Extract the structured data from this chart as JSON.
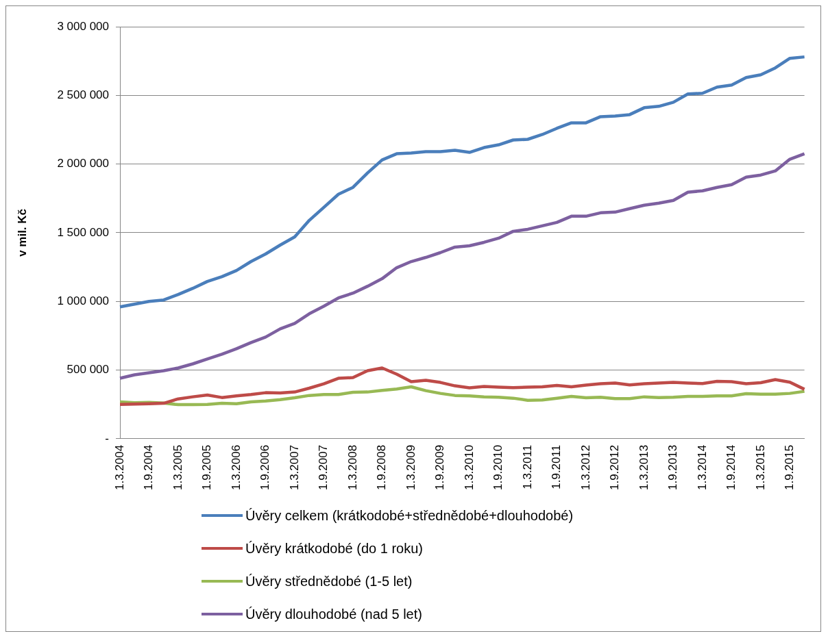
{
  "chart_data": {
    "type": "line",
    "ylabel": "v mil. Kč",
    "categories": [
      "1.3.2004",
      null,
      "1.9.2004",
      null,
      "1.3.2005",
      null,
      "1.9.2005",
      null,
      "1.3.2006",
      null,
      "1.9.2006",
      null,
      "1.3.2007",
      null,
      "1.9.2007",
      null,
      "1.3.2008",
      null,
      "1.9.2008",
      null,
      "1.3.2009",
      null,
      "1.9.2009",
      null,
      "1.3.2010",
      null,
      "1.9.2010",
      null,
      "1.3.2011",
      null,
      "1.9.2011",
      null,
      "1.3.2012",
      null,
      "1.9.2012",
      null,
      "1.3.2013",
      null,
      "1.9.2013",
      null,
      "1.3.2014",
      null,
      "1.9.2014",
      null,
      "1.3.2015",
      null,
      "1.9.2015",
      null
    ],
    "series": [
      {
        "name": "Úvěry celkem (krátkodobé+střednědobé+dlouhodobé)",
        "color": "#4a7ebb",
        "values": [
          960000,
          980000,
          1000000,
          1010000,
          1050000,
          1095000,
          1145000,
          1180000,
          1225000,
          1290000,
          1345000,
          1410000,
          1470000,
          1590000,
          1685000,
          1780000,
          1830000,
          1935000,
          2030000,
          2075000,
          2080000,
          2090000,
          2090000,
          2100000,
          2085000,
          2120000,
          2140000,
          2175000,
          2180000,
          2215000,
          2260000,
          2300000,
          2300000,
          2345000,
          2350000,
          2360000,
          2410000,
          2420000,
          2450000,
          2510000,
          2515000,
          2560000,
          2575000,
          2630000,
          2650000,
          2700000,
          2770000,
          2780000
        ]
      },
      {
        "name": "Úvěry krátkodobé (do 1 roku)",
        "color": "#be4b48",
        "values": [
          250000,
          252000,
          255000,
          258000,
          290000,
          305000,
          318000,
          300000,
          312000,
          322000,
          335000,
          333000,
          340000,
          368000,
          400000,
          440000,
          445000,
          495000,
          515000,
          470000,
          415000,
          425000,
          410000,
          385000,
          370000,
          380000,
          375000,
          372000,
          375000,
          378000,
          388000,
          378000,
          390000,
          400000,
          405000,
          392000,
          400000,
          405000,
          410000,
          405000,
          402000,
          418000,
          415000,
          400000,
          408000,
          430000,
          412000,
          360000
        ]
      },
      {
        "name": "Úvěry střednědobé (1-5 let)",
        "color": "#98b954",
        "values": [
          268000,
          262000,
          265000,
          260000,
          248000,
          248000,
          250000,
          258000,
          255000,
          268000,
          275000,
          285000,
          298000,
          315000,
          322000,
          322000,
          338000,
          340000,
          352000,
          362000,
          378000,
          350000,
          330000,
          315000,
          312000,
          305000,
          302000,
          295000,
          280000,
          282000,
          295000,
          308000,
          298000,
          302000,
          292000,
          292000,
          305000,
          300000,
          302000,
          308000,
          308000,
          312000,
          312000,
          328000,
          325000,
          325000,
          330000,
          345000
        ]
      },
      {
        "name": "Úvěry dlouhodobé (nad 5 let)",
        "color": "#7d60a0",
        "values": [
          440000,
          465000,
          480000,
          495000,
          515000,
          545000,
          580000,
          615000,
          655000,
          700000,
          740000,
          800000,
          840000,
          910000,
          965000,
          1025000,
          1060000,
          1110000,
          1165000,
          1245000,
          1290000,
          1320000,
          1355000,
          1395000,
          1405000,
          1430000,
          1460000,
          1510000,
          1525000,
          1550000,
          1575000,
          1620000,
          1620000,
          1645000,
          1650000,
          1675000,
          1700000,
          1715000,
          1735000,
          1795000,
          1805000,
          1830000,
          1850000,
          1905000,
          1920000,
          1950000,
          2035000,
          2075000
        ]
      }
    ],
    "ylim": [
      0,
      3000000
    ],
    "yticks": [
      {
        "value": 0,
        "label": "-"
      },
      {
        "value": 500000,
        "label": "500 000"
      },
      {
        "value": 1000000,
        "label": "1 000 000"
      },
      {
        "value": 1500000,
        "label": "1 500 000"
      },
      {
        "value": 2000000,
        "label": "2 000 000"
      },
      {
        "value": 2500000,
        "label": "2 500 000"
      },
      {
        "value": 3000000,
        "label": "3 000 000"
      }
    ],
    "grid": "y",
    "legend": "bottom",
    "marker": "none",
    "line_style": "solid"
  }
}
